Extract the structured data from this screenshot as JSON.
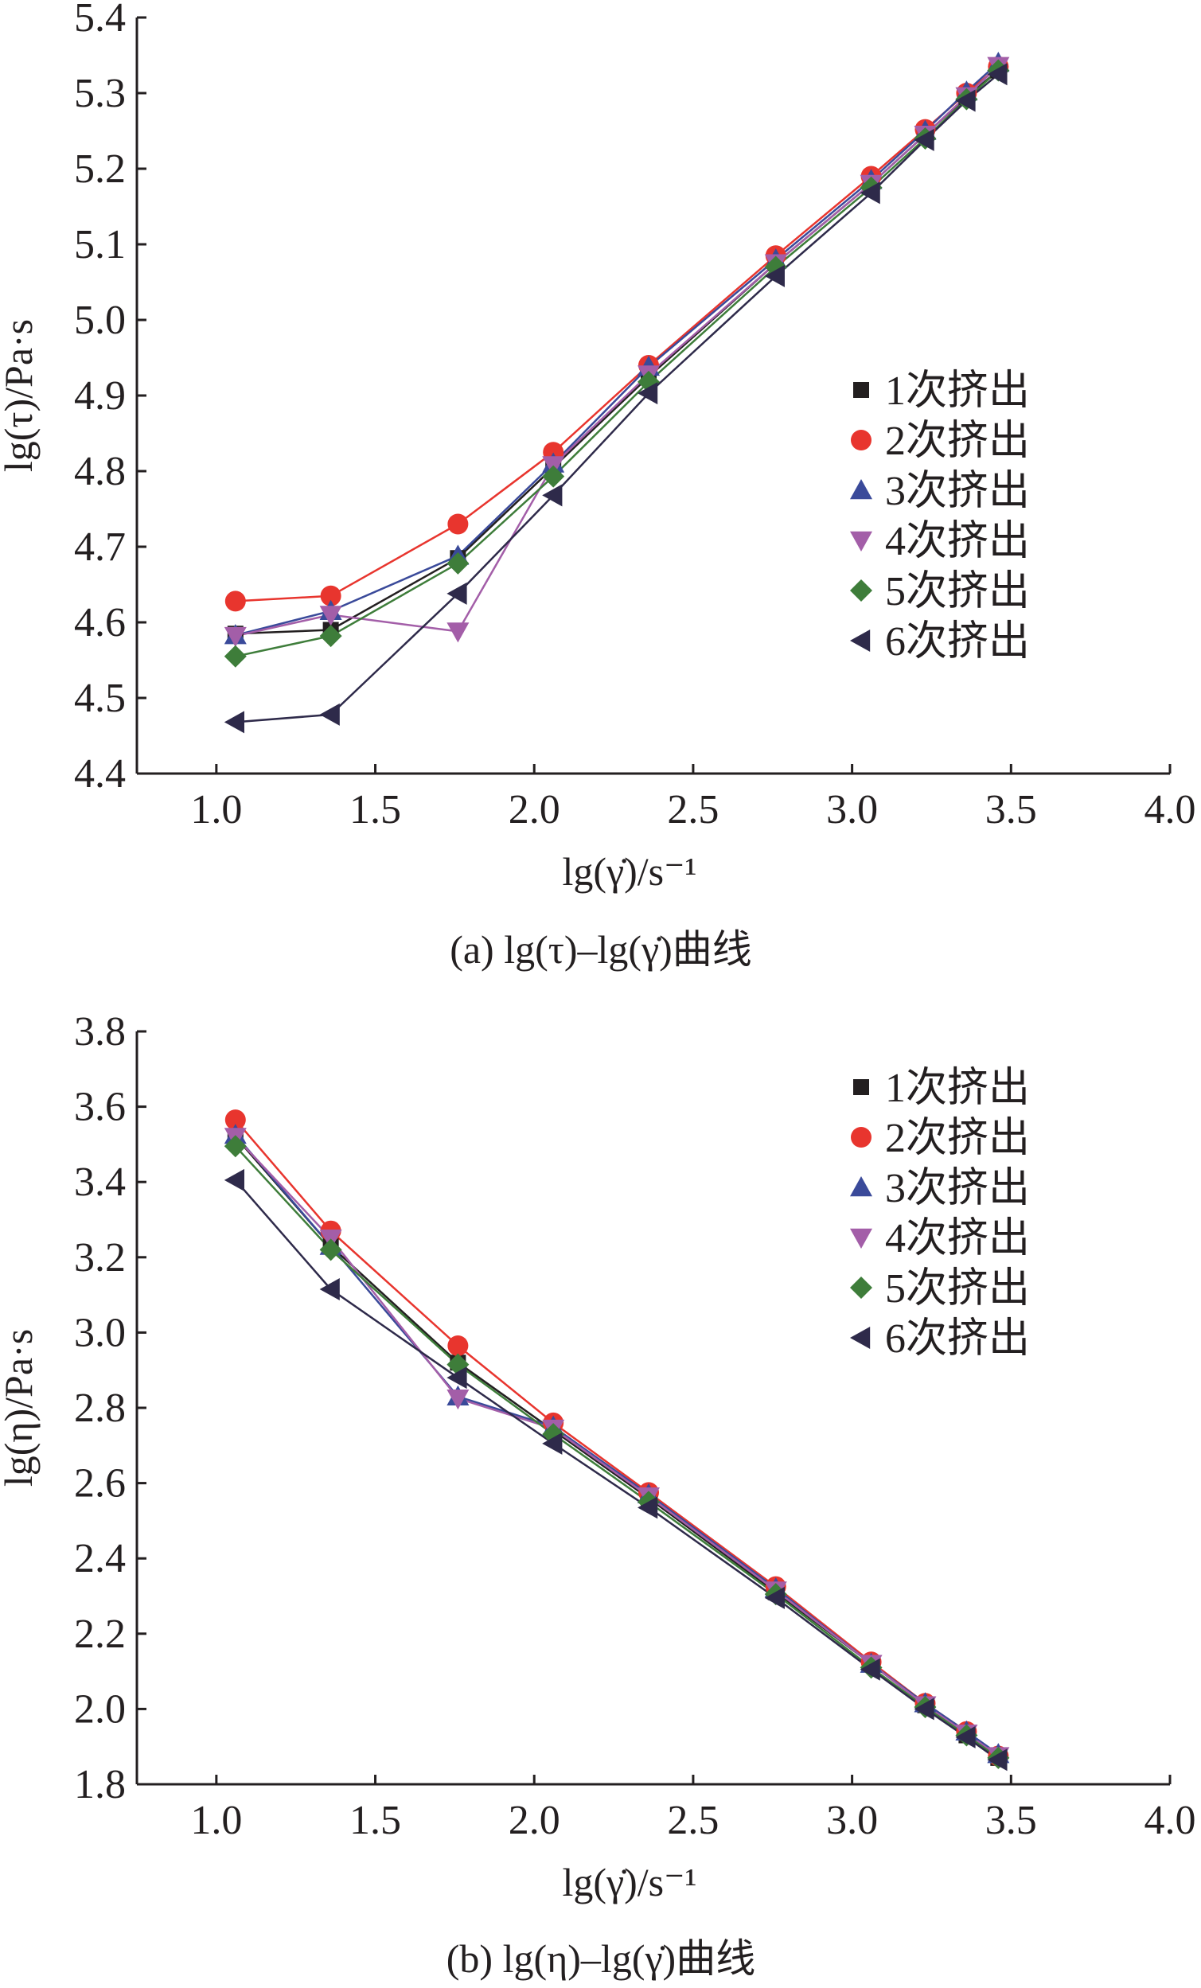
{
  "chart_data": [
    {
      "type": "line",
      "title": "",
      "caption": "(a) lg(τ)–lg(γ̇)曲线",
      "xlabel": "lg(γ̇)/s⁻¹",
      "ylabel": "lg(τ)/Pa·s",
      "xlim": [
        0.75,
        4.0
      ],
      "ylim": [
        4.4,
        5.4
      ],
      "xticks": [
        "1.0",
        "1.5",
        "2.0",
        "2.5",
        "3.0",
        "3.5",
        "4.0"
      ],
      "yticks": [
        "4.4",
        "4.5",
        "4.6",
        "4.7",
        "4.8",
        "4.9",
        "5.0",
        "5.1",
        "5.2",
        "5.3",
        "5.4"
      ],
      "grid": false,
      "legend_position": "right-middle",
      "x": [
        1.06,
        1.36,
        1.76,
        2.06,
        2.36,
        2.76,
        3.06,
        3.23,
        3.36,
        3.46
      ],
      "series": [
        {
          "name": "1次挤出",
          "marker": "square",
          "color": "#231f20",
          "values": [
            4.585,
            4.59,
            4.685,
            4.805,
            4.925,
            5.075,
            5.18,
            5.245,
            5.295,
            5.33
          ]
        },
        {
          "name": "2次挤出",
          "marker": "circle",
          "color": "#e8352e",
          "values": [
            4.628,
            4.635,
            4.73,
            4.825,
            4.94,
            5.085,
            5.19,
            5.252,
            5.3,
            5.335
          ]
        },
        {
          "name": "3次挤出",
          "marker": "triangle-up",
          "color": "#3a4a9a",
          "values": [
            4.583,
            4.615,
            4.688,
            4.81,
            4.938,
            5.08,
            5.185,
            5.25,
            5.302,
            5.34
          ]
        },
        {
          "name": "4次挤出",
          "marker": "triangle-down",
          "color": "#a35ea8",
          "values": [
            4.582,
            4.61,
            4.588,
            4.808,
            4.928,
            5.075,
            5.18,
            5.245,
            5.296,
            5.336
          ]
        },
        {
          "name": "5次挤出",
          "marker": "diamond",
          "color": "#3e7d3a",
          "values": [
            4.555,
            4.582,
            4.678,
            4.793,
            4.918,
            5.07,
            5.175,
            5.24,
            5.292,
            5.33
          ]
        },
        {
          "name": "6次挤出",
          "marker": "triangle-left",
          "color": "#2e2a4a",
          "values": [
            4.468,
            4.478,
            4.638,
            4.768,
            4.903,
            5.058,
            5.168,
            5.238,
            5.29,
            5.325
          ]
        }
      ]
    },
    {
      "type": "line",
      "title": "",
      "caption": "(b) lg(η)–lg(γ̇)曲线",
      "xlabel": "lg(γ̇)/s⁻¹",
      "ylabel": "lg(η)/Pa·s",
      "xlim": [
        0.75,
        4.0
      ],
      "ylim": [
        1.8,
        3.8
      ],
      "xticks": [
        "1.0",
        "1.5",
        "2.0",
        "2.5",
        "3.0",
        "3.5",
        "4.0"
      ],
      "yticks": [
        "1.8",
        "2.0",
        "2.2",
        "2.4",
        "2.6",
        "2.8",
        "3.0",
        "3.2",
        "3.4",
        "3.6",
        "3.8"
      ],
      "grid": false,
      "legend_position": "top-right",
      "x": [
        1.06,
        1.36,
        1.76,
        2.06,
        2.36,
        2.76,
        3.06,
        3.23,
        3.36,
        3.46
      ],
      "series": [
        {
          "name": "1次挤出",
          "marker": "square",
          "color": "#231f20",
          "values": [
            3.52,
            3.23,
            2.92,
            2.74,
            2.56,
            2.31,
            2.12,
            2.01,
            1.93,
            1.87
          ]
        },
        {
          "name": "2次挤出",
          "marker": "circle",
          "color": "#e8352e",
          "values": [
            3.565,
            3.27,
            2.965,
            2.76,
            2.575,
            2.325,
            2.125,
            2.015,
            1.94,
            1.875
          ]
        },
        {
          "name": "3次挤出",
          "marker": "triangle-up",
          "color": "#3a4a9a",
          "values": [
            3.525,
            3.23,
            2.83,
            2.75,
            2.57,
            2.32,
            2.12,
            2.015,
            1.94,
            1.88
          ]
        },
        {
          "name": "4次挤出",
          "marker": "triangle-down",
          "color": "#a35ea8",
          "values": [
            3.52,
            3.25,
            2.825,
            2.745,
            2.565,
            2.315,
            2.12,
            2.01,
            1.935,
            1.875
          ]
        },
        {
          "name": "5次挤出",
          "marker": "diamond",
          "color": "#3e7d3a",
          "values": [
            3.495,
            3.22,
            2.915,
            2.73,
            2.55,
            2.305,
            2.11,
            2.005,
            1.93,
            1.87
          ]
        },
        {
          "name": "6次挤出",
          "marker": "triangle-left",
          "color": "#2e2a4a",
          "values": [
            3.405,
            3.115,
            2.88,
            2.705,
            2.535,
            2.295,
            2.105,
            2.0,
            1.925,
            1.865
          ]
        }
      ]
    }
  ]
}
